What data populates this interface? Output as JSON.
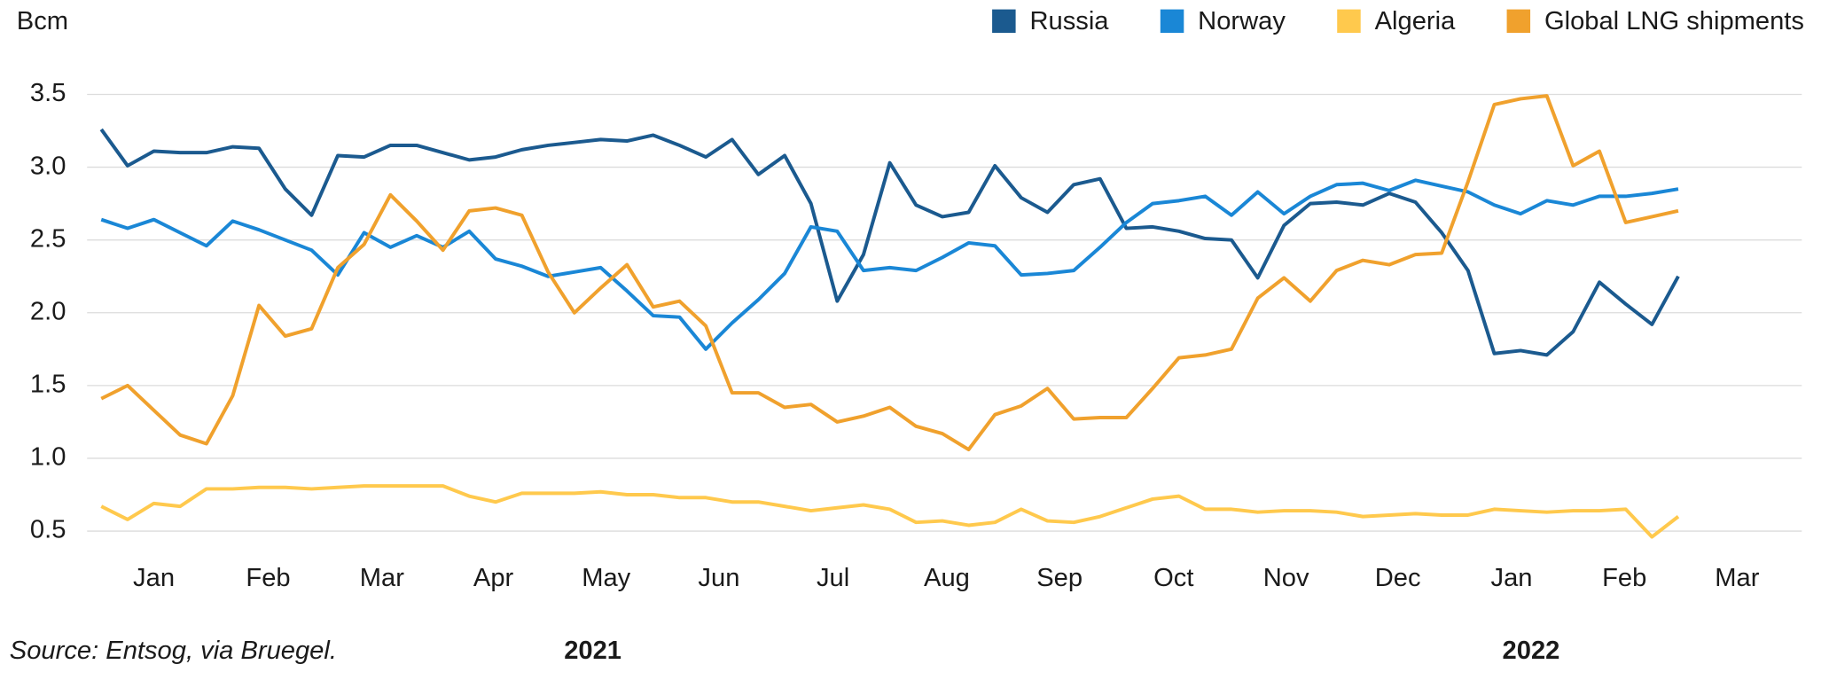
{
  "chart_data": {
    "type": "line",
    "y_label": "Bcm",
    "source": "Source: Entsog, via Bruegel.",
    "annotations": [
      {
        "text": "2021",
        "x": 18.7
      },
      {
        "text": "2022",
        "x": 54.4
      }
    ],
    "x": [
      0,
      1,
      2,
      3,
      4,
      5,
      6,
      7,
      8,
      9,
      10,
      11,
      12,
      13,
      14,
      15,
      16,
      17,
      18,
      19,
      20,
      21,
      22,
      23,
      24,
      25,
      26,
      27,
      28,
      29,
      30,
      31,
      32,
      33,
      34,
      35,
      36,
      37,
      38,
      39,
      40,
      41,
      42,
      43,
      44,
      45,
      46,
      47,
      48,
      49,
      50,
      51,
      52,
      53,
      54,
      55,
      56,
      57,
      58,
      59,
      60
    ],
    "xlim": [
      -0.54,
      64.7
    ],
    "xticks": [
      {
        "value": 2.0,
        "label": "Jan"
      },
      {
        "value": 6.35,
        "label": "Feb"
      },
      {
        "value": 10.68,
        "label": "Mar"
      },
      {
        "value": 14.92,
        "label": "Apr"
      },
      {
        "value": 19.21,
        "label": "May"
      },
      {
        "value": 23.5,
        "label": "Jun"
      },
      {
        "value": 27.84,
        "label": "Jul"
      },
      {
        "value": 32.17,
        "label": "Aug"
      },
      {
        "value": 36.46,
        "label": "Sep"
      },
      {
        "value": 40.8,
        "label": "Oct"
      },
      {
        "value": 45.08,
        "label": "Nov"
      },
      {
        "value": 49.33,
        "label": "Dec"
      },
      {
        "value": 53.66,
        "label": "Jan"
      },
      {
        "value": 57.95,
        "label": "Feb"
      },
      {
        "value": 62.24,
        "label": "Mar"
      }
    ],
    "ylim": [
      0.3,
      3.6
    ],
    "yticks": [
      0.5,
      {
        "value": 1,
        "label": "1.0"
      },
      1.5,
      {
        "value": 2,
        "label": "2.0"
      },
      2.5,
      {
        "value": 3,
        "label": "3.0"
      },
      3.5
    ],
    "grid": true,
    "legend": "top-right",
    "series": [
      {
        "name": "Russia",
        "color": "#1b5a8f",
        "values": [
          3.26,
          3.01,
          3.11,
          3.1,
          3.1,
          3.14,
          3.13,
          2.85,
          2.67,
          3.08,
          3.07,
          3.15,
          3.15,
          3.1,
          3.05,
          3.07,
          3.12,
          3.15,
          3.17,
          3.19,
          3.18,
          3.22,
          3.15,
          3.07,
          3.19,
          2.95,
          3.08,
          2.75,
          2.08,
          2.4,
          3.03,
          2.74,
          2.66,
          2.69,
          3.01,
          2.79,
          2.69,
          2.88,
          2.92,
          2.58,
          2.59,
          2.56,
          2.51,
          2.5,
          2.24,
          2.6,
          2.75,
          2.76,
          2.74,
          2.82,
          2.76,
          2.55,
          2.29,
          1.72,
          1.74,
          1.71,
          1.87,
          2.21,
          2.06,
          1.92,
          2.25
        ]
      },
      {
        "name": "Norway",
        "color": "#1a87d6",
        "values": [
          2.64,
          2.58,
          2.64,
          2.55,
          2.46,
          2.63,
          2.57,
          2.5,
          2.43,
          2.26,
          2.55,
          2.45,
          2.53,
          2.45,
          2.56,
          2.37,
          2.32,
          2.25,
          2.28,
          2.31,
          2.15,
          1.98,
          1.97,
          1.75,
          1.93,
          2.09,
          2.27,
          2.59,
          2.56,
          2.29,
          2.31,
          2.29,
          2.38,
          2.48,
          2.46,
          2.26,
          2.27,
          2.29,
          2.45,
          2.62,
          2.75,
          2.77,
          2.8,
          2.67,
          2.83,
          2.68,
          2.8,
          2.88,
          2.89,
          2.84,
          2.91,
          2.87,
          2.83,
          2.74,
          2.68,
          2.77,
          2.74,
          2.8,
          2.8,
          2.82,
          2.85
        ]
      },
      {
        "name": "Algeria",
        "color": "#ffc94d",
        "values": [
          0.67,
          0.58,
          0.69,
          0.67,
          0.79,
          0.79,
          0.8,
          0.8,
          0.79,
          0.8,
          0.81,
          0.81,
          0.81,
          0.81,
          0.74,
          0.7,
          0.76,
          0.76,
          0.76,
          0.77,
          0.75,
          0.75,
          0.73,
          0.73,
          0.7,
          0.7,
          0.67,
          0.64,
          0.66,
          0.68,
          0.65,
          0.56,
          0.57,
          0.54,
          0.56,
          0.65,
          0.57,
          0.56,
          0.6,
          0.66,
          0.72,
          0.74,
          0.65,
          0.65,
          0.63,
          0.64,
          0.64,
          0.63,
          0.6,
          0.61,
          0.62,
          0.61,
          0.61,
          0.65,
          0.64,
          0.63,
          0.64,
          0.64,
          0.65,
          0.46,
          0.6
        ]
      },
      {
        "name": "Global LNG shipments",
        "color": "#f0a12d",
        "values": [
          1.41,
          1.5,
          1.33,
          1.16,
          1.1,
          1.43,
          2.05,
          1.84,
          1.89,
          2.31,
          2.47,
          2.81,
          2.63,
          2.43,
          2.7,
          2.72,
          2.67,
          2.28,
          2.0,
          2.17,
          2.33,
          2.04,
          2.08,
          1.91,
          1.45,
          1.45,
          1.35,
          1.37,
          1.25,
          1.29,
          1.35,
          1.22,
          1.17,
          1.06,
          1.3,
          1.36,
          1.48,
          1.27,
          1.28,
          1.28,
          1.48,
          1.69,
          1.71,
          1.75,
          2.1,
          2.24,
          2.08,
          2.29,
          2.36,
          2.33,
          2.4,
          2.41,
          2.9,
          3.43,
          3.47,
          3.49,
          3.01,
          3.11,
          2.62,
          2.66,
          2.7
        ]
      }
    ]
  }
}
